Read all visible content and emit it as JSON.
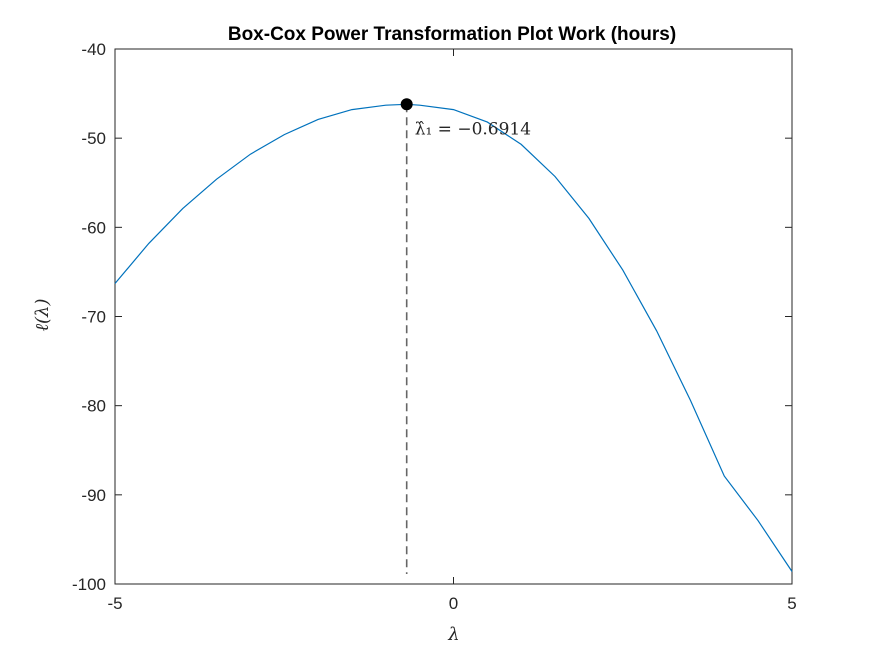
{
  "chart_data": {
    "type": "line",
    "title": "Box-Cox Power Transformation Plot Work (hours)",
    "xlabel": "λ",
    "ylabel": "ℓ(λ)",
    "xlim": [
      -5,
      5
    ],
    "ylim": [
      -100,
      -40
    ],
    "xticks": [
      -5,
      0,
      5
    ],
    "xtick_labels": [
      "-5",
      "0",
      "5"
    ],
    "yticks": [
      -40,
      -50,
      -60,
      -70,
      -80,
      -90,
      -100
    ],
    "ytick_labels": [
      "-40",
      "-50",
      "-60",
      "-70",
      "-80",
      "-90",
      "-100"
    ],
    "grid": false,
    "legend": "none",
    "series": [
      {
        "color": "#0072BD",
        "x": [
          -5,
          -4.5,
          -4,
          -3.5,
          -3,
          -2.5,
          -2,
          -1.5,
          -1,
          -0.6914,
          -0.5,
          0,
          0.5,
          1,
          1.5,
          2,
          2.5,
          3,
          3.5,
          4,
          4.5,
          5
        ],
        "y": [
          -66.3,
          -61.8,
          -57.9,
          -54.6,
          -51.8,
          -49.6,
          -47.9,
          -46.8,
          -46.3,
          -46.2,
          -46.3,
          -46.8,
          -48.2,
          -50.7,
          -54.3,
          -59.0,
          -64.8,
          -71.6,
          -79.4,
          -87.9,
          -92.9,
          -98.6
        ]
      }
    ],
    "optimum": {
      "x": -0.6914,
      "y": -46.2,
      "marker_color": "#000000",
      "line_color": "#666666",
      "label": "λ̂₁ = −0.6914"
    }
  }
}
